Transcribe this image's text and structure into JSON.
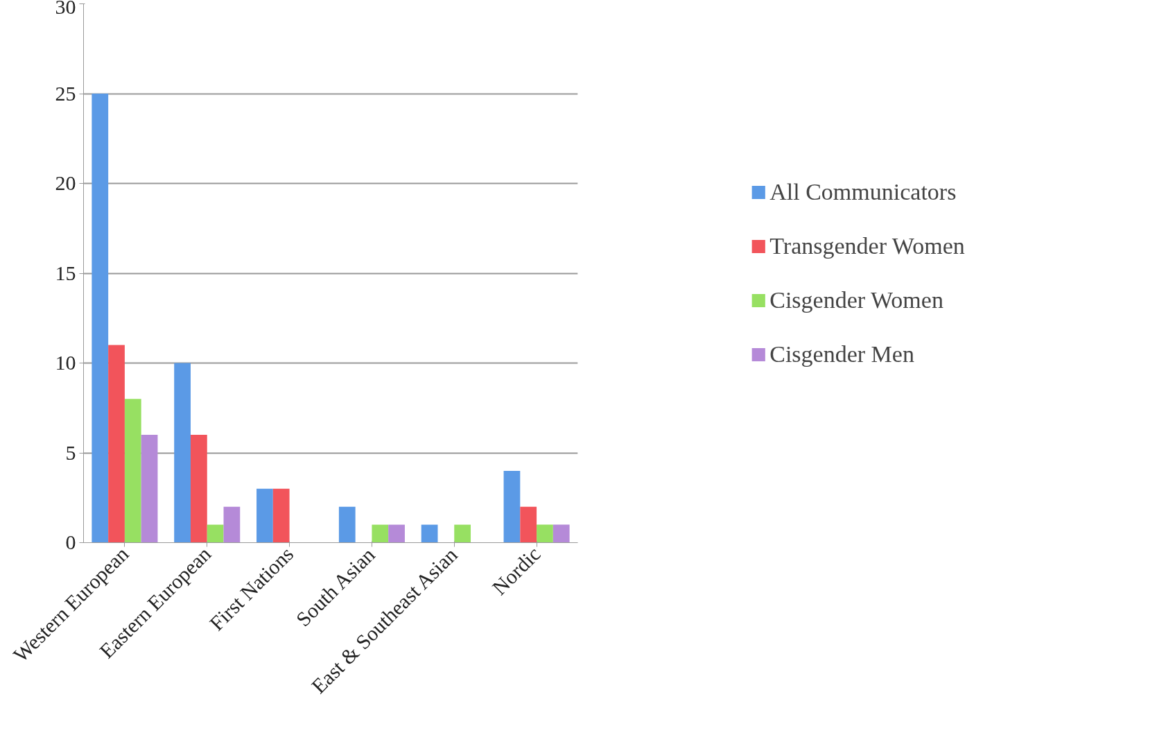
{
  "chart_data": {
    "type": "bar",
    "categories": [
      "Western European",
      "Eastern European",
      "First Nations",
      "South Asian",
      "East & Southeast Asian",
      "Nordic"
    ],
    "series": [
      {
        "name": "All Communicators",
        "color": "#5b9ae6",
        "values": [
          25,
          10,
          3,
          2,
          1,
          4
        ]
      },
      {
        "name": "Transgender Women",
        "color": "#f2545b",
        "values": [
          11,
          6,
          3,
          0,
          0,
          2
        ]
      },
      {
        "name": "Cisgender Women",
        "color": "#97e062",
        "values": [
          8,
          1,
          0,
          1,
          1,
          1
        ]
      },
      {
        "name": "Cisgender Men",
        "color": "#b58ad8",
        "values": [
          6,
          2,
          0,
          1,
          0,
          1
        ]
      }
    ],
    "ylim": [
      0,
      30
    ],
    "yticks": [
      0,
      5,
      10,
      15,
      20,
      25,
      30
    ],
    "grid": "y",
    "legend": "right"
  }
}
